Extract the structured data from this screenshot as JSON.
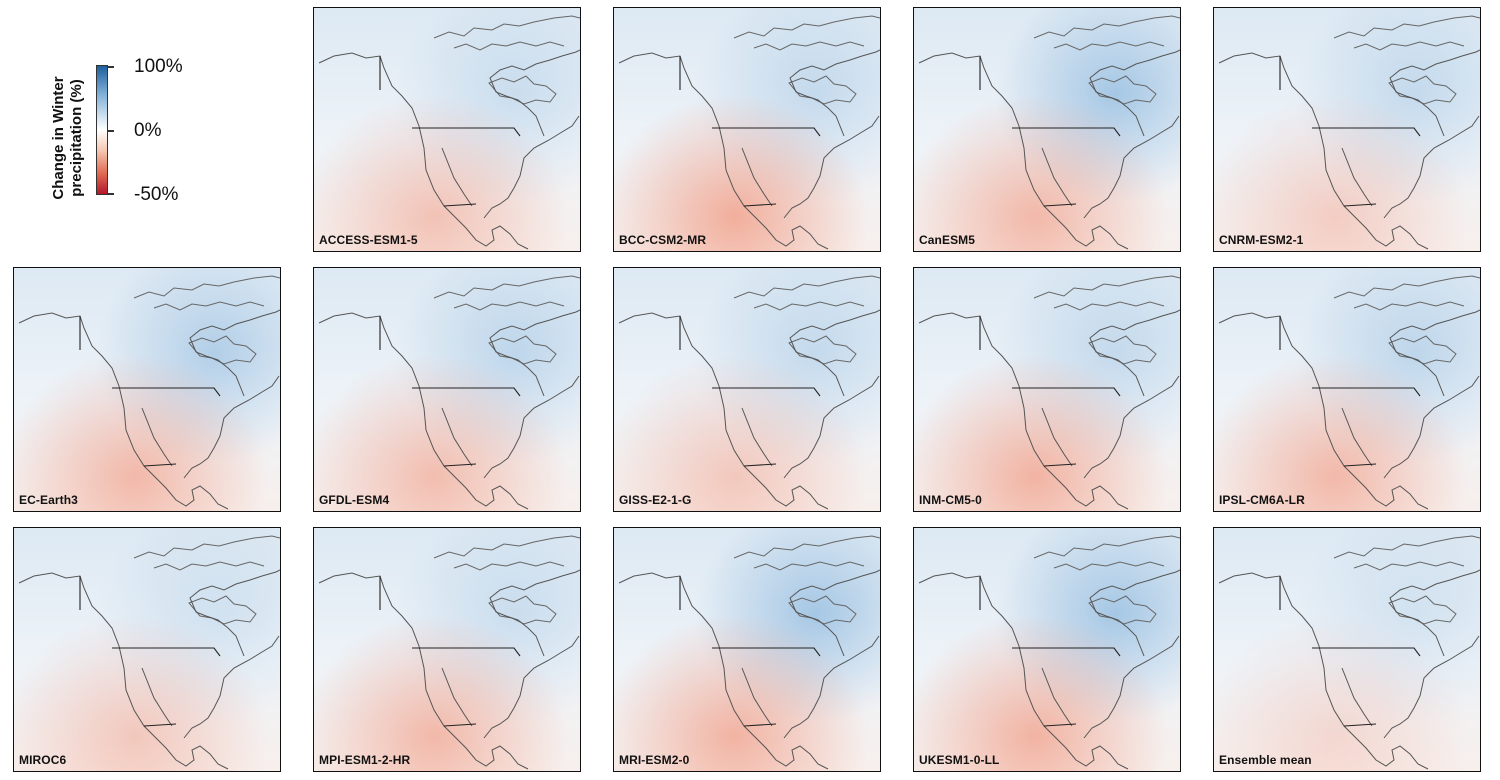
{
  "legend": {
    "title_line1": "Change in Winter",
    "title_line2": "precipitation (%)",
    "ticks": [
      "100%",
      "0%",
      "-50%"
    ],
    "colors": {
      "wet": "#1f5f9e",
      "neutral": "#ffffff",
      "dry": "#b2182b"
    }
  },
  "panels": [
    {
      "name": "ACCESS-ESM1-5"
    },
    {
      "name": "BCC-CSM2-MR"
    },
    {
      "name": "CanESM5"
    },
    {
      "name": "CNRM-ESM2-1"
    },
    {
      "name": "EC-Earth3"
    },
    {
      "name": "GFDL-ESM4"
    },
    {
      "name": "GISS-E2-1-G"
    },
    {
      "name": "INM-CM5-0"
    },
    {
      "name": "IPSL-CM6A-LR"
    },
    {
      "name": "MIROC6"
    },
    {
      "name": "MPI-ESM1-2-HR"
    },
    {
      "name": "MRI-ESM2-0"
    },
    {
      "name": "UKESM1-0-LL"
    },
    {
      "name": "Ensemble mean"
    }
  ],
  "chart_data": {
    "type": "heatmap",
    "title": "",
    "colorbar_label": "Change in Winter precipitation (%)",
    "colorbar_ticks": [
      "100%",
      "0%",
      "-50%"
    ],
    "colorbar_range": [
      -50,
      100
    ],
    "panels": [
      "ACCESS-ESM1-5",
      "BCC-CSM2-MR",
      "CanESM5",
      "CNRM-ESM2-1",
      "EC-Earth3",
      "GFDL-ESM4",
      "GISS-E2-1-G",
      "INM-CM5-0",
      "IPSL-CM6A-LR",
      "MIROC6",
      "MPI-ESM1-2-HR",
      "MRI-ESM2-0",
      "UKESM1-0-LL",
      "Ensemble mean"
    ]
  }
}
